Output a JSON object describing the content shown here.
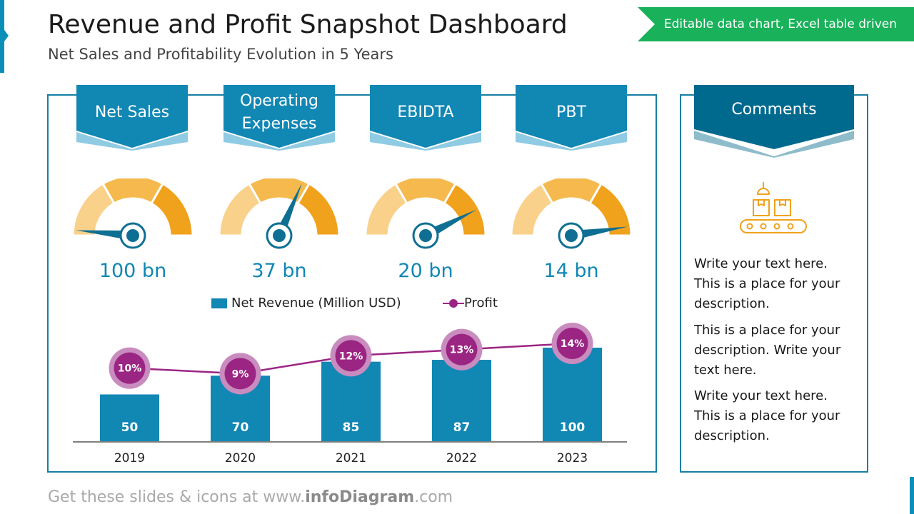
{
  "header": {
    "title": "Revenue and Profit Snapshot Dashboard",
    "subtitle": "Net Sales and Profitability Evolution in 5 Years",
    "tag": "Editable data chart, Excel table driven"
  },
  "kpis": [
    {
      "label": "Net Sales",
      "value": "100 bn",
      "level": 0.03
    },
    {
      "label": "Operating Expenses",
      "value": "37 bn",
      "level": 0.63
    },
    {
      "label": "EBIDTA",
      "value": "20 bn",
      "level": 0.85
    },
    {
      "label": "PBT",
      "value": "14 bn",
      "level": 0.95
    }
  ],
  "legend": {
    "bars": "Net Revenue (Million USD)",
    "line": "Profit"
  },
  "chart_data": {
    "type": "bar",
    "categories": [
      "2019",
      "2020",
      "2021",
      "2022",
      "2023"
    ],
    "series": [
      {
        "name": "Net Revenue (Million USD)",
        "type": "bar",
        "values": [
          50,
          70,
          85,
          87,
          100
        ],
        "labels": [
          "50",
          "70",
          "85",
          "87",
          "100"
        ]
      },
      {
        "name": "Profit",
        "type": "line",
        "values": [
          10,
          9,
          12,
          13,
          14
        ],
        "labels": [
          "10%",
          "9%",
          "12%",
          "13%",
          "14%"
        ]
      }
    ],
    "colors": {
      "bars": "#1187b4",
      "line": "#9b2583",
      "marker_halo": "#c98cbf"
    }
  },
  "comments": {
    "title": "Comments",
    "icon": "conveyor-belt-boxes-icon",
    "paragraphs": [
      "Write your text here. This is a place for your description.",
      "This is a place for your description. Write your text here.",
      "Write your text here. This is a place for your description."
    ]
  },
  "footer": {
    "prefix": "Get these slides & icons at www.",
    "brand": "infoDiagram",
    "suffix": ".com"
  },
  "colors": {
    "accent_blue": "#1187b4",
    "dark_blue": "#006a8e",
    "tag_green": "#19b15a",
    "gauge_light": "#f9d18b",
    "gauge_mid": "#f5b94d",
    "gauge_dark": "#f0a21c"
  }
}
